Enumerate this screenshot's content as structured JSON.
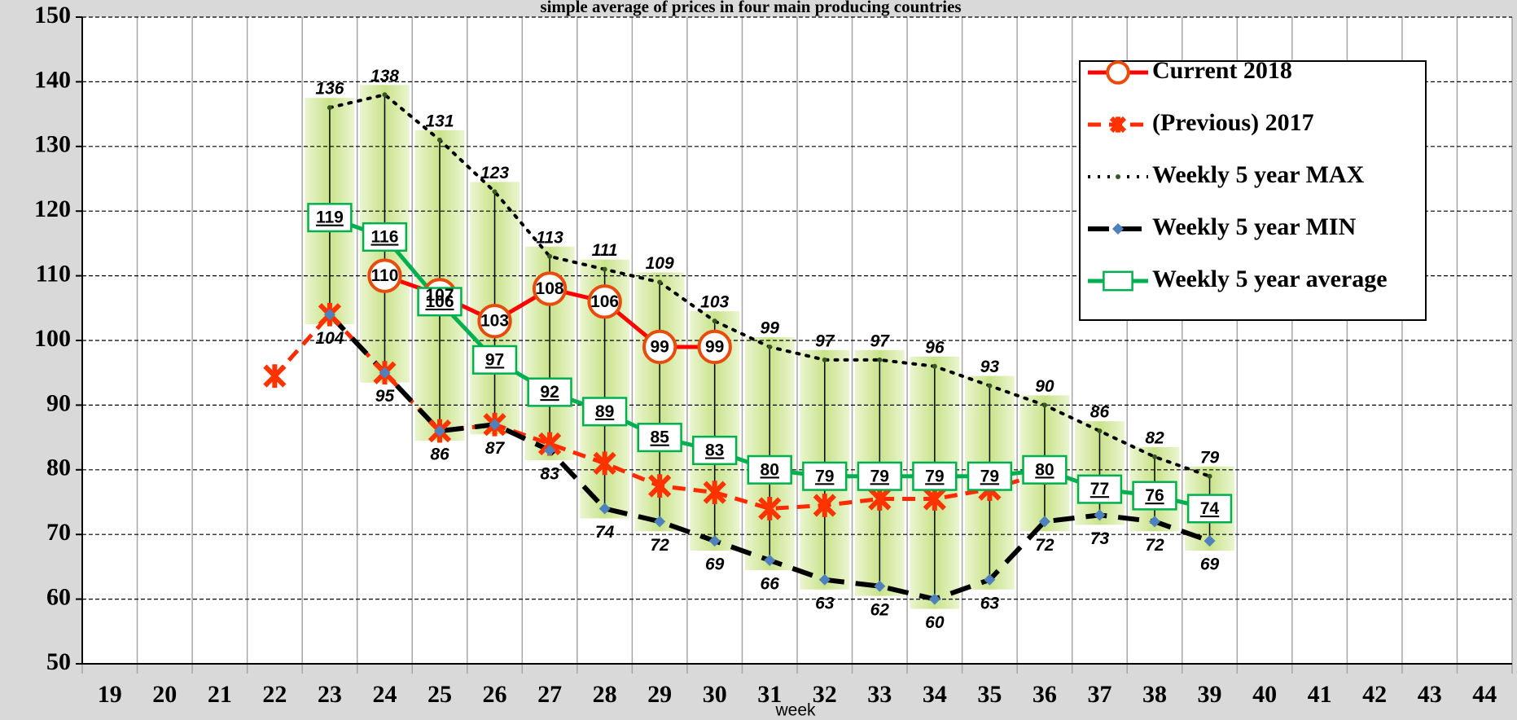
{
  "chart_data": {
    "type": "line",
    "title": "simple average of prices in four main producing countries",
    "x_label": "week",
    "categories": [
      "19",
      "20",
      "21",
      "22",
      "23",
      "24",
      "25",
      "26",
      "27",
      "28",
      "29",
      "30",
      "31",
      "32",
      "33",
      "34",
      "35",
      "36",
      "37",
      "38",
      "39",
      "40",
      "41",
      "42",
      "43",
      "44"
    ],
    "ylim": [
      50,
      150
    ],
    "yticks": [
      50,
      60,
      70,
      80,
      90,
      100,
      110,
      120,
      130,
      140,
      150
    ],
    "grid": true,
    "legend": "upper right",
    "series": [
      {
        "name": "Current 2018",
        "color": "#ff0000",
        "line_style": "solid",
        "marker": "circle",
        "values": [
          null,
          null,
          null,
          null,
          null,
          110,
          107,
          103,
          108,
          106,
          99,
          99,
          null,
          null,
          null,
          null,
          null,
          null,
          null,
          null,
          null,
          null,
          null,
          null,
          null,
          null
        ]
      },
      {
        "name": "(Previous) 2017",
        "color": "#ff2a00",
        "line_style": "dashed",
        "marker": "x",
        "values": [
          null,
          null,
          null,
          94.5,
          104,
          95,
          86,
          87,
          84,
          81,
          77.5,
          76.5,
          74,
          74.5,
          75.5,
          75.5,
          77,
          79.5,
          null,
          null,
          null,
          null,
          null,
          null,
          null,
          null
        ]
      },
      {
        "name": "Weekly 5 year MAX",
        "color": "#000000",
        "line_style": "dotted",
        "marker": "dot",
        "values": [
          null,
          null,
          null,
          null,
          136,
          138,
          131,
          123,
          113,
          111,
          109,
          103,
          99,
          97,
          97,
          96,
          93,
          90,
          86,
          82,
          79,
          null,
          null,
          null,
          null,
          null
        ]
      },
      {
        "name": "Weekly 5 year MIN",
        "color": "#000000",
        "line_style": "dashed",
        "marker": "diamond",
        "values": [
          null,
          null,
          null,
          null,
          104,
          95,
          86,
          87,
          83,
          74,
          72,
          69,
          66,
          63,
          62,
          60,
          63,
          72,
          73,
          72,
          69,
          null,
          null,
          null,
          null,
          null
        ]
      },
      {
        "name": "Weekly 5 year average",
        "color": "#00b050",
        "line_style": "solid",
        "marker": "square",
        "values": [
          null,
          null,
          null,
          null,
          119,
          116,
          106,
          97,
          92,
          89,
          85,
          83,
          80,
          79,
          79,
          79,
          79,
          80,
          77,
          76,
          74,
          null,
          null,
          null,
          null,
          null
        ]
      }
    ]
  }
}
